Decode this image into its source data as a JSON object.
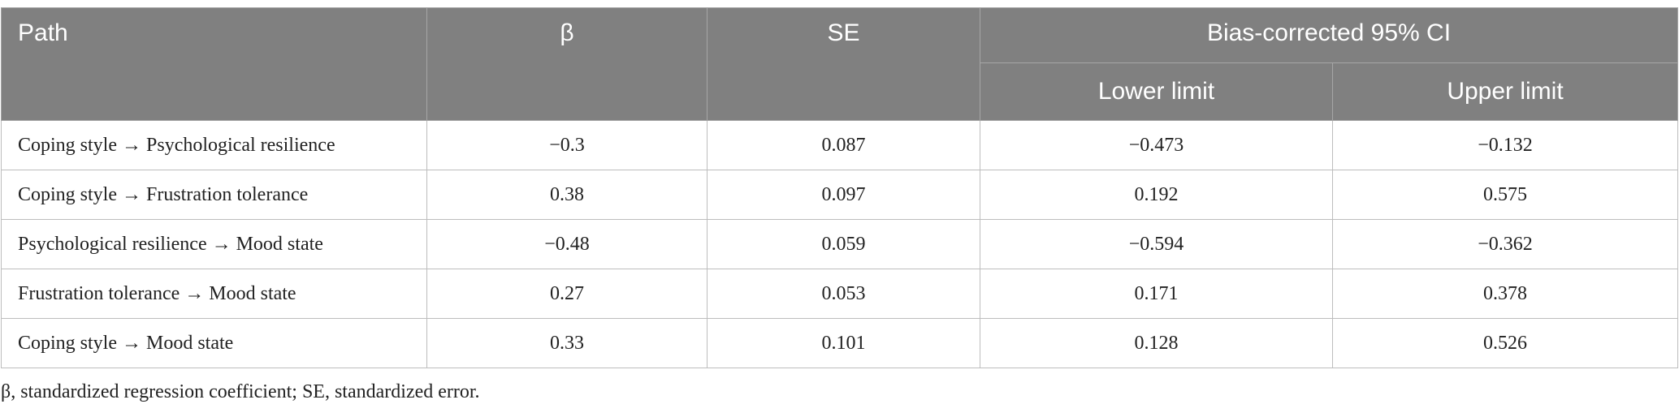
{
  "table": {
    "columns": [
      "Path",
      "β",
      "SE"
    ],
    "group": "Bias-corrected 95% CI",
    "subcolumns": [
      "Lower limit",
      "Upper limit"
    ],
    "rows": [
      [
        "Coping style → Psychological resilience",
        "−0.3",
        "0.087",
        "−0.473",
        "−0.132"
      ],
      [
        "Coping style → Frustration tolerance",
        "0.38",
        "0.097",
        "0.192",
        "0.575"
      ],
      [
        "Psychological resilience → Mood state",
        "−0.48",
        "0.059",
        "−0.594",
        "−0.362"
      ],
      [
        "Frustration tolerance → Mood state",
        "0.27",
        "0.053",
        "0.171",
        "0.378"
      ],
      [
        "Coping style → Mood state",
        "0.33",
        "0.101",
        "0.128",
        "0.526"
      ]
    ]
  },
  "footnote": "β, standardized regression coefficient; SE, standardized error."
}
